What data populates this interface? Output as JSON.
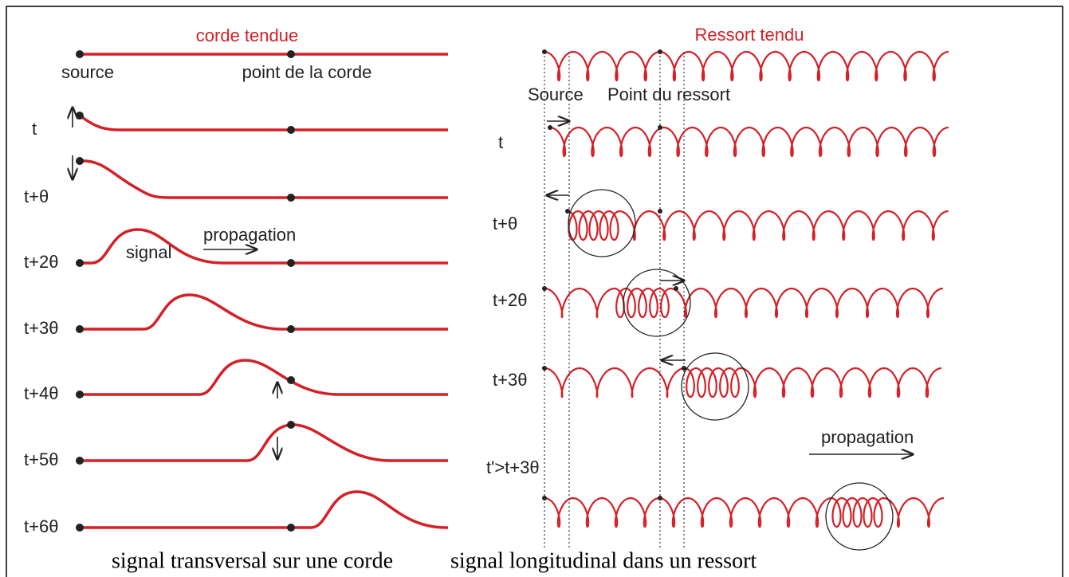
{
  "left": {
    "title": "corde tendue",
    "source_label": "source",
    "point_label": "point de la corde",
    "time_labels": [
      "t",
      "t+θ",
      "t+2θ",
      "t+3θ",
      "t+4θ",
      "t+5θ",
      "t+6θ"
    ],
    "signal_label": "signal",
    "propagation_label": "propagation",
    "caption": "signal transversal sur une corde"
  },
  "right": {
    "title": "Ressort tendu",
    "source_label": "Source",
    "point_label": "Point du ressort",
    "time_labels": [
      "t",
      "t+θ",
      "t+2θ",
      "t+3θ",
      "t'>t+3θ"
    ],
    "propagation_label": "propagation",
    "caption": "signal longitudinal dans un ressort"
  }
}
